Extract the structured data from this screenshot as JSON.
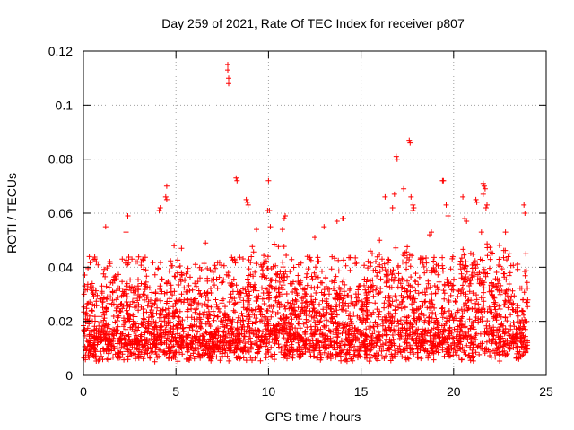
{
  "chart_data": {
    "type": "scatter",
    "title": "Day 259 of 2021, Rate Of TEC Index for receiver p807",
    "xlabel": "GPS time / hours",
    "ylabel": "ROTI / TECUs",
    "xlim": [
      0,
      25
    ],
    "ylim": [
      0,
      0.12
    ],
    "xticks": [
      0,
      5,
      10,
      15,
      20,
      25
    ],
    "xtick_labels": [
      "0",
      "5",
      "10",
      "15",
      "20",
      "25"
    ],
    "yticks": [
      0,
      0.02,
      0.04,
      0.06,
      0.08,
      0.1,
      0.12
    ],
    "ytick_labels": [
      "0",
      "0.02",
      "0.04",
      "0.06",
      "0.08",
      "0.1",
      "0.12"
    ],
    "grid": true,
    "marker": "+",
    "marker_color": "#ff0000",
    "dense_band": {
      "x_range": [
        0,
        24
      ],
      "typical_y_range": [
        0.005,
        0.03
      ],
      "note": "dense cluster of thousands of points"
    },
    "series": [
      {
        "name": "ROTI",
        "points": [
          [
            7.8,
            0.115
          ],
          [
            7.8,
            0.113
          ],
          [
            7.85,
            0.11
          ],
          [
            7.85,
            0.108
          ],
          [
            17.6,
            0.087
          ],
          [
            17.65,
            0.086
          ],
          [
            16.9,
            0.081
          ],
          [
            16.95,
            0.08
          ],
          [
            8.25,
            0.073
          ],
          [
            8.3,
            0.072
          ],
          [
            19.4,
            0.072
          ],
          [
            19.45,
            0.072
          ],
          [
            10.0,
            0.072
          ],
          [
            21.6,
            0.071
          ],
          [
            21.65,
            0.07
          ],
          [
            21.7,
            0.069
          ],
          [
            21.6,
            0.067
          ],
          [
            4.5,
            0.07
          ],
          [
            4.45,
            0.066
          ],
          [
            4.5,
            0.065
          ],
          [
            17.3,
            0.069
          ],
          [
            16.8,
            0.067
          ],
          [
            16.7,
            0.062
          ],
          [
            16.3,
            0.066
          ],
          [
            17.7,
            0.066
          ],
          [
            17.8,
            0.063
          ],
          [
            17.85,
            0.062
          ],
          [
            17.8,
            0.061
          ],
          [
            8.8,
            0.065
          ],
          [
            8.85,
            0.064
          ],
          [
            8.9,
            0.063
          ],
          [
            20.5,
            0.066
          ],
          [
            21.2,
            0.065
          ],
          [
            21.25,
            0.064
          ],
          [
            23.8,
            0.063
          ],
          [
            23.85,
            0.06
          ],
          [
            19.6,
            0.063
          ],
          [
            21.8,
            0.063
          ],
          [
            21.75,
            0.062
          ],
          [
            9.95,
            0.061
          ],
          [
            10.05,
            0.061
          ],
          [
            4.1,
            0.061
          ],
          [
            4.15,
            0.062
          ],
          [
            2.4,
            0.059
          ],
          [
            10.9,
            0.059
          ],
          [
            10.85,
            0.058
          ],
          [
            14.0,
            0.058
          ],
          [
            14.05,
            0.058
          ],
          [
            19.7,
            0.059
          ],
          [
            20.6,
            0.058
          ],
          [
            20.7,
            0.057
          ],
          [
            13.7,
            0.057
          ],
          [
            1.2,
            0.055
          ],
          [
            10.1,
            0.055
          ],
          [
            10.75,
            0.054
          ],
          [
            13.0,
            0.055
          ],
          [
            9.35,
            0.054
          ],
          [
            2.3,
            0.053
          ],
          [
            18.8,
            0.053
          ],
          [
            18.7,
            0.052
          ],
          [
            21.5,
            0.053
          ],
          [
            22.8,
            0.053
          ],
          [
            12.5,
            0.051
          ],
          [
            16.0,
            0.05
          ],
          [
            6.6,
            0.049
          ],
          [
            3.2,
            0.043
          ],
          [
            4.9,
            0.048
          ],
          [
            5.3,
            0.047
          ],
          [
            15.5,
            0.046
          ],
          [
            15.6,
            0.045
          ],
          [
            23.0,
            0.045
          ],
          [
            23.9,
            0.045
          ],
          [
            12.1,
            0.044
          ],
          [
            12.2,
            0.043
          ],
          [
            2.1,
            0.043
          ],
          [
            0.7,
            0.042
          ]
        ]
      }
    ]
  }
}
